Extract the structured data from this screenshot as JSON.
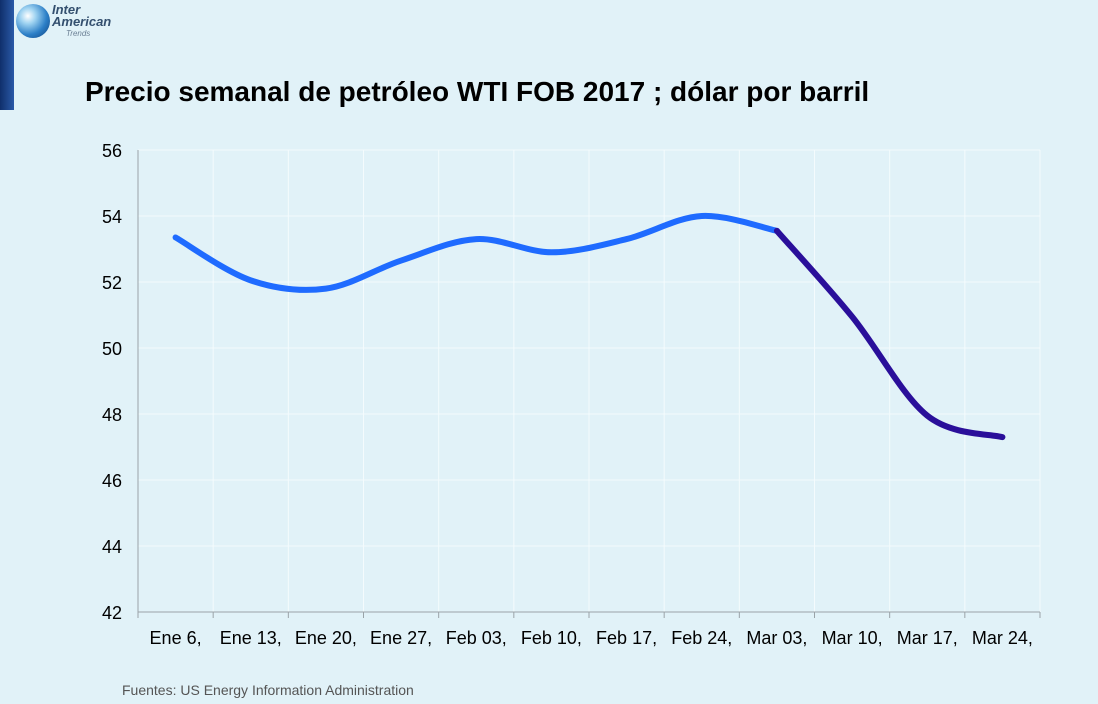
{
  "logo": {
    "line1": "Inter",
    "line2": "American",
    "line3": "Trends"
  },
  "source": "Fuentes: US Energy Information Administration",
  "chart_data": {
    "type": "line",
    "title": "Precio semanal de petróleo WTI FOB 2017 ; dólar por barril",
    "categories": [
      "Ene 6,",
      "Ene 13,",
      "Ene 20,",
      "Ene 27,",
      "Feb 03,",
      "Feb 10,",
      "Feb 17,",
      "Feb 24,",
      "Mar 03,",
      "Mar 10,",
      "Mar 17,",
      "Mar 24,"
    ],
    "y_ticks": [
      42,
      44,
      46,
      48,
      50,
      52,
      54,
      56
    ],
    "ylim": [
      42,
      56
    ],
    "grid": true,
    "series": [
      {
        "values": [
          53.35,
          52.05,
          51.8,
          52.65,
          53.3,
          52.9,
          53.3,
          54.0,
          53.55,
          null,
          null,
          null
        ],
        "color": "#1f6bff"
      },
      {
        "values": [
          null,
          null,
          null,
          null,
          null,
          null,
          null,
          null,
          53.55,
          50.95,
          47.95,
          47.3
        ],
        "color": "#2a0f9a"
      }
    ]
  }
}
